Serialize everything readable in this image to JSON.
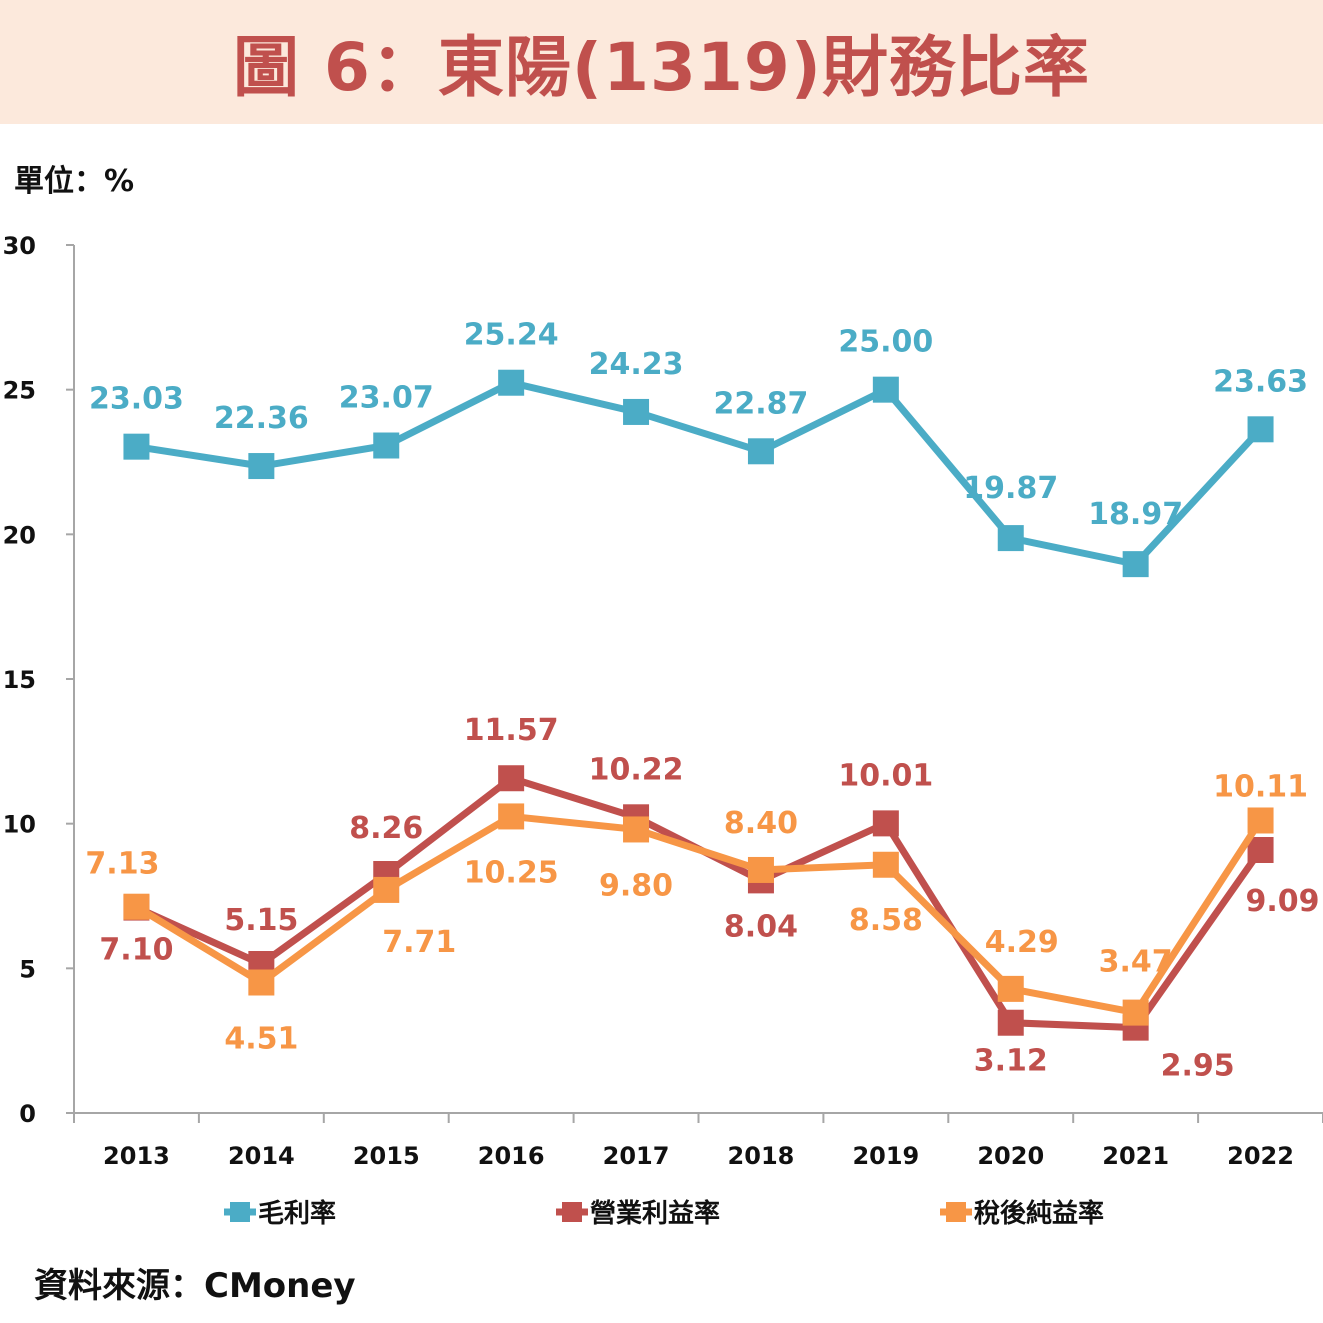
{
  "title": "圖 6：東陽(1319)財務比率",
  "unit_label": "單位：%",
  "source": "資料來源：CMoney",
  "colors": {
    "header_bg": "#fce9dc",
    "title": "#c0504d",
    "gross": "#4bacc6",
    "operating": "#c0504d",
    "net": "#f79646"
  },
  "chart_data": {
    "type": "line",
    "categories": [
      "2013",
      "2014",
      "2015",
      "2016",
      "2017",
      "2018",
      "2019",
      "2020",
      "2021",
      "2022"
    ],
    "ylim": [
      0,
      30
    ],
    "yticks": [
      0,
      5,
      10,
      15,
      20,
      25,
      30
    ],
    "grid": false,
    "legend_position": "bottom",
    "series": [
      {
        "name": "毛利率",
        "color": "#4bacc6",
        "values": [
          23.03,
          22.36,
          23.07,
          25.24,
          24.23,
          22.87,
          25.0,
          19.87,
          18.97,
          23.63
        ],
        "labels": [
          "23.03",
          "22.36",
          "23.07",
          "25.24",
          "24.23",
          "22.87",
          "25.00",
          "19.87",
          "18.97",
          "23.63"
        ]
      },
      {
        "name": "營業利益率",
        "color": "#c0504d",
        "values": [
          7.1,
          5.15,
          8.26,
          11.57,
          10.22,
          8.04,
          10.01,
          3.12,
          2.95,
          9.09
        ],
        "labels": [
          "7.10",
          "5.15",
          "8.26",
          "11.57",
          "10.22",
          "8.04",
          "10.01",
          "3.12",
          "2.95",
          "9.09"
        ]
      },
      {
        "name": "稅後純益率",
        "color": "#f79646",
        "values": [
          7.13,
          4.51,
          7.71,
          10.25,
          9.8,
          8.4,
          8.58,
          4.29,
          3.47,
          10.11
        ],
        "labels": [
          "7.13",
          "4.51",
          "7.71",
          "10.25",
          "9.80",
          "8.40",
          "8.58",
          "4.29",
          "3.47",
          "10.11"
        ]
      }
    ]
  }
}
